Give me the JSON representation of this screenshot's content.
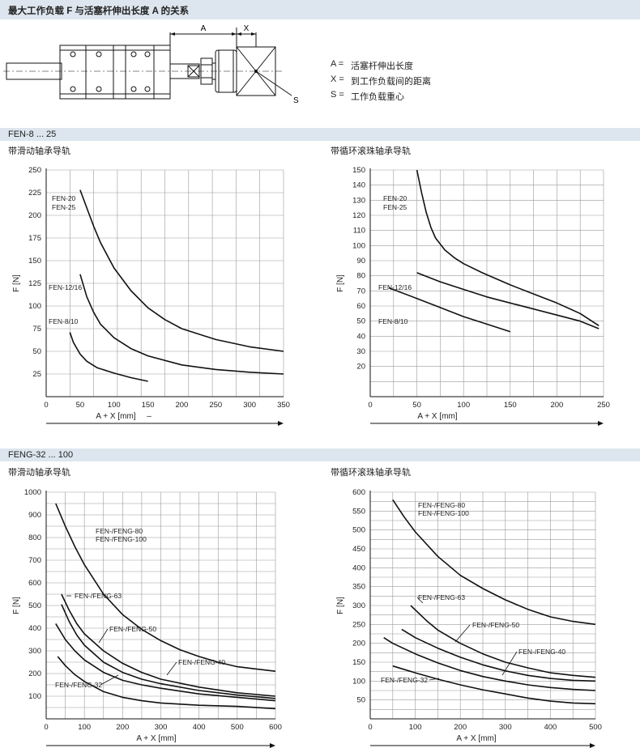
{
  "header": {
    "title": "最大工作负载 F 与活塞杆伸出长度 A 的关系"
  },
  "diagram": {
    "dim_a": "A",
    "dim_x": "X",
    "point_s": "S",
    "legend": [
      {
        "key": "A =",
        "text": "活塞杆伸出长度"
      },
      {
        "key": "X =",
        "text": "到工作负载间的距离"
      },
      {
        "key": "S =",
        "text": "工作负载重心"
      }
    ]
  },
  "sections": [
    {
      "title": "FEN-8 ... 25"
    },
    {
      "title": "FENG-32 ... 100"
    }
  ],
  "chart_data": [
    {
      "type": "line",
      "title": "带滑动轴承导轨",
      "xlabel": "A + X [mm]",
      "ylabel": "F [N]",
      "xlim": [
        0,
        350
      ],
      "ylim": [
        0,
        250
      ],
      "xticks": [
        0,
        50,
        100,
        150,
        200,
        250,
        300,
        350
      ],
      "yticks": [
        25,
        50,
        75,
        100,
        125,
        150,
        175,
        200,
        225,
        250
      ],
      "xgrid": 10,
      "ygrid": 10,
      "extra_mark": "–",
      "series": [
        {
          "name": "FEN-20 / FEN-25",
          "labels": [
            "FEN-20",
            "FEN-25"
          ],
          "x": [
            50,
            60,
            70,
            80,
            100,
            125,
            150,
            175,
            200,
            250,
            300,
            350
          ],
          "y": [
            228,
            208,
            188,
            170,
            142,
            117,
            98,
            85,
            75,
            63,
            55,
            50
          ]
        },
        {
          "name": "FEN-12/16",
          "labels": [
            "FEN-12/16"
          ],
          "x": [
            50,
            60,
            70,
            80,
            100,
            125,
            150,
            200,
            250,
            300,
            350
          ],
          "y": [
            135,
            110,
            93,
            80,
            65,
            53,
            45,
            35,
            30,
            27,
            25
          ]
        },
        {
          "name": "FEN-8/10",
          "labels": [
            "FEN-8/10"
          ],
          "x": [
            35,
            40,
            50,
            60,
            75,
            100,
            125,
            150
          ],
          "y": [
            71,
            60,
            47,
            39,
            32,
            26,
            21,
            17
          ]
        }
      ]
    },
    {
      "type": "line",
      "title": "带循环滚珠轴承导轨",
      "xlabel": "A + X [mm]",
      "ylabel": "F [N]",
      "xlim": [
        0,
        250
      ],
      "ylim": [
        0,
        150
      ],
      "xticks": [
        0,
        50,
        100,
        150,
        200,
        250
      ],
      "yticks": [
        20,
        30,
        40,
        50,
        60,
        70,
        80,
        90,
        100,
        110,
        120,
        130,
        140,
        150
      ],
      "xgrid": 10,
      "ygrid": 15,
      "series": [
        {
          "name": "FEN-20 / FEN-25",
          "labels": [
            "FEN-20",
            "FEN-25"
          ],
          "x": [
            50,
            55,
            60,
            65,
            70,
            80,
            90,
            100,
            120,
            150,
            175,
            200,
            225,
            245
          ],
          "y": [
            150,
            135,
            122,
            112,
            105,
            97,
            92,
            88,
            82,
            74,
            68,
            62,
            55,
            47
          ]
        },
        {
          "name": "FEN-12/16",
          "labels": [
            "FEN-12/16"
          ],
          "x": [
            50,
            75,
            100,
            125,
            150,
            175,
            200,
            225,
            245
          ],
          "y": [
            82,
            76,
            71,
            66,
            62,
            58,
            54,
            50,
            45
          ]
        },
        {
          "name": "FEN-8/10",
          "labels": [
            "FEN-8/10"
          ],
          "x": [
            20,
            50,
            75,
            100,
            125,
            150
          ],
          "y": [
            72,
            65,
            59,
            53,
            48,
            43
          ]
        }
      ]
    },
    {
      "type": "line",
      "title": "带滑动轴承导轨",
      "xlabel": "A + X [mm]",
      "ylabel": "F [N]",
      "xlim": [
        0,
        600
      ],
      "ylim": [
        0,
        1000
      ],
      "xticks": [
        0,
        100,
        200,
        300,
        400,
        500,
        600
      ],
      "yticks": [
        100,
        200,
        300,
        400,
        500,
        600,
        700,
        800,
        900,
        1000
      ],
      "xgrid": 12,
      "ygrid": 20,
      "series": [
        {
          "name": "FEN-/FENG-80 / FEN-/FENG-100",
          "labels": [
            "FEN-/FENG-80",
            "FEN-/FENG-100"
          ],
          "x": [
            25,
            50,
            75,
            100,
            150,
            200,
            250,
            300,
            350,
            400,
            450,
            500,
            550,
            600
          ],
          "y": [
            950,
            850,
            760,
            680,
            550,
            460,
            395,
            345,
            305,
            275,
            250,
            230,
            220,
            210
          ]
        },
        {
          "name": "FEN-/FENG-63",
          "labels": [
            "FEN-/FENG-63"
          ],
          "x": [
            40,
            60,
            80,
            100,
            150,
            200,
            250,
            300,
            400,
            500,
            600
          ],
          "y": [
            550,
            480,
            420,
            375,
            300,
            245,
            205,
            175,
            140,
            115,
            100
          ]
        },
        {
          "name": "FEN-/FENG-50",
          "labels": [
            "FEN-/FENG-50"
          ],
          "x": [
            40,
            60,
            80,
            100,
            150,
            200,
            250,
            300,
            400,
            500,
            600
          ],
          "y": [
            505,
            430,
            370,
            325,
            250,
            205,
            175,
            155,
            125,
            105,
            90
          ]
        },
        {
          "name": "FEN-/FENG-40",
          "labels": [
            "FEN-/FENG-40"
          ],
          "x": [
            25,
            50,
            75,
            100,
            150,
            200,
            250,
            300,
            400,
            500,
            600
          ],
          "y": [
            420,
            350,
            300,
            260,
            205,
            170,
            150,
            135,
            110,
            95,
            80
          ]
        },
        {
          "name": "FEN-/FENG-32",
          "labels": [
            "FEN-/FENG-32"
          ],
          "x": [
            30,
            50,
            75,
            100,
            150,
            200,
            250,
            300,
            400,
            500,
            600
          ],
          "y": [
            275,
            235,
            195,
            165,
            120,
            95,
            80,
            70,
            60,
            55,
            45
          ]
        }
      ]
    },
    {
      "type": "line",
      "title": "带循环滚珠轴承导轨",
      "xlabel": "A + X [mm]",
      "ylabel": "F [N]",
      "xlim": [
        0,
        500
      ],
      "ylim": [
        0,
        600
      ],
      "xticks": [
        0,
        100,
        200,
        300,
        400,
        500
      ],
      "yticks": [
        50,
        100,
        150,
        200,
        250,
        300,
        350,
        400,
        450,
        500,
        550,
        600
      ],
      "xgrid": 10,
      "ygrid": 24,
      "series": [
        {
          "name": "FEN-/FENG-80 / FEN-/FENG-100",
          "labels": [
            "FEN-/FENG-80",
            "FEN-/FENG-100"
          ],
          "x": [
            50,
            75,
            100,
            150,
            200,
            250,
            300,
            350,
            400,
            450,
            500
          ],
          "y": [
            580,
            535,
            495,
            430,
            380,
            345,
            315,
            290,
            270,
            258,
            250
          ]
        },
        {
          "name": "FEN-/FENG-63",
          "labels": [
            "FEN-/FENG-63"
          ],
          "x": [
            90,
            125,
            150,
            200,
            250,
            300,
            350,
            400,
            450,
            500
          ],
          "y": [
            300,
            260,
            235,
            200,
            172,
            150,
            135,
            122,
            115,
            110
          ]
        },
        {
          "name": "FEN-/FENG-50",
          "labels": [
            "FEN-/FENG-50"
          ],
          "x": [
            70,
            100,
            150,
            200,
            250,
            300,
            350,
            400,
            450,
            500
          ],
          "y": [
            237,
            215,
            187,
            163,
            143,
            127,
            115,
            107,
            102,
            100
          ]
        },
        {
          "name": "FEN-/FENG-40",
          "labels": [
            "FEN-/FENG-40"
          ],
          "x": [
            30,
            50,
            100,
            150,
            200,
            250,
            300,
            350,
            400,
            450,
            500
          ],
          "y": [
            215,
            200,
            172,
            148,
            128,
            112,
            100,
            90,
            83,
            78,
            75
          ]
        },
        {
          "name": "FEN-/FENG-32",
          "labels": [
            "FEN-/FENG-32"
          ],
          "x": [
            50,
            100,
            150,
            200,
            250,
            300,
            350,
            400,
            450,
            500
          ],
          "y": [
            140,
            122,
            105,
            90,
            77,
            66,
            55,
            47,
            42,
            40
          ]
        }
      ]
    }
  ]
}
